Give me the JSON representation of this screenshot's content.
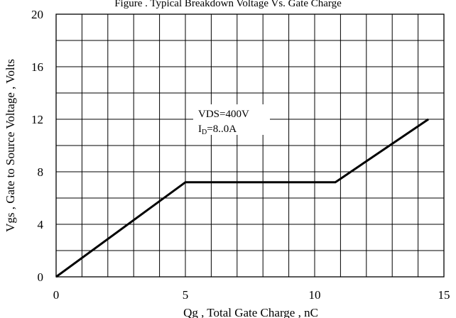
{
  "chart_data": {
    "type": "line",
    "title": "Figure . Typical Breakdown Voltage Vs. Gate Charge",
    "xlabel": "Qg , Total Gate Charge , nC",
    "ylabel": "Vgs , Gate to Source Voltage , Volts",
    "xlim": [
      0,
      15
    ],
    "ylim": [
      0,
      20
    ],
    "x_ticks": [
      "0",
      "5",
      "10",
      "15"
    ],
    "y_ticks": [
      "0",
      "4",
      "8",
      "12",
      "16",
      "20"
    ],
    "x_minor_step": 1,
    "y_minor_step": 2,
    "grid": true,
    "series": [
      {
        "x": [
          0,
          5.0,
          10.8,
          14.4
        ],
        "y": [
          0,
          7.2,
          7.2,
          12.0
        ]
      }
    ],
    "annotations": [
      {
        "line1": "VDS=400V",
        "line2_main": "I",
        "line2_sub": "D",
        "line2_rest": "=8..0A"
      }
    ],
    "colors": {
      "line": "#000000",
      "grid": "#000000",
      "background": "#ffffff"
    }
  }
}
